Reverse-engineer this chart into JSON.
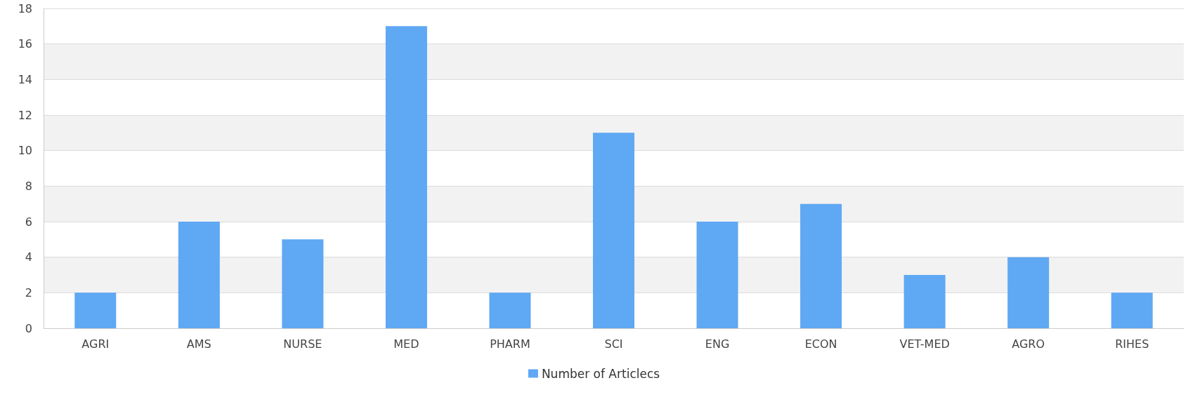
{
  "chart_data": {
    "type": "bar",
    "categories": [
      "AGRI",
      "AMS",
      "NURSE",
      "MED",
      "PHARM",
      "SCI",
      "ENG",
      "ECON",
      "VET-MED",
      "AGRO",
      "RIHES"
    ],
    "series": [
      {
        "name": "Number of Articlecs",
        "color": "#5fa8f3",
        "values": [
          2,
          6,
          5,
          17,
          2,
          11,
          6,
          7,
          3,
          4,
          2
        ]
      }
    ],
    "ylim": [
      0,
      18
    ],
    "yticks": [
      0,
      2,
      4,
      6,
      8,
      10,
      12,
      14,
      16,
      18
    ],
    "grid": "y",
    "legend": "bottom"
  }
}
